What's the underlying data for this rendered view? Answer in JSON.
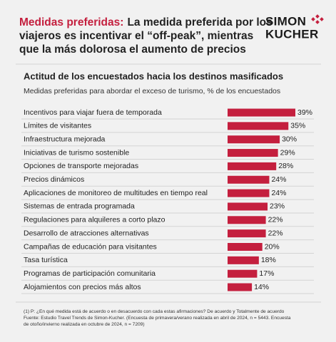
{
  "header": {
    "title_highlight": "Medidas preferidas:",
    "title_lines": [
      "La medida preferida por los",
      "viajeros es incentivar el “off-peak”, mientras",
      "que la más dolorosa el aumento de precios"
    ],
    "logo": [
      "SIMON",
      "KUCHER"
    ]
  },
  "chart_data": {
    "type": "bar",
    "orientation": "horizontal",
    "title": "Actitud de los encuestados hacia los destinos masificados",
    "subtitle": "Medidas preferidas para abordar el exceso de turismo, % de los encuestados",
    "categories": [
      "Incentivos para viajar fuera de temporada",
      "Límites de visitantes",
      "Infraestructura mejorada",
      "Iniciativas de turismo sostenible",
      "Opciones de transporte mejoradas",
      "Precios dinámicos",
      "Aplicaciones de monitoreo de multitudes en tiempo real",
      "Sistemas de entrada programada",
      "Regulaciones para alquileres a corto plazo",
      "Desarrollo de atracciones alternativas",
      "Campañas de educación para visitantes",
      "Tasa turística",
      "Programas de participación comunitaria",
      "Alojamientos con precios más altos"
    ],
    "values": [
      39,
      35,
      30,
      29,
      28,
      24,
      24,
      23,
      22,
      22,
      20,
      18,
      17,
      14
    ],
    "value_labels": [
      "39%",
      "35%",
      "30%",
      "29%",
      "28%",
      "24%",
      "24%",
      "23%",
      "22%",
      "22%",
      "20%",
      "18%",
      "17%",
      "14%"
    ],
    "color": "#c41f3e"
  },
  "footnote": [
    "(1) P: ¿En qué medida está de acuerdo o en desacuerdo con cada estas afirmaciones? De acuerdo y Totalmente de acuerdo",
    "Fuente: Estudio Travel Trends de Simon-Kucher. (Encuesta de primavera/verano realizada en abril de 2024, n = 5443. Encuesta",
    "de otoño/invierno realizada en octubre de 2024, n = 7209)"
  ]
}
